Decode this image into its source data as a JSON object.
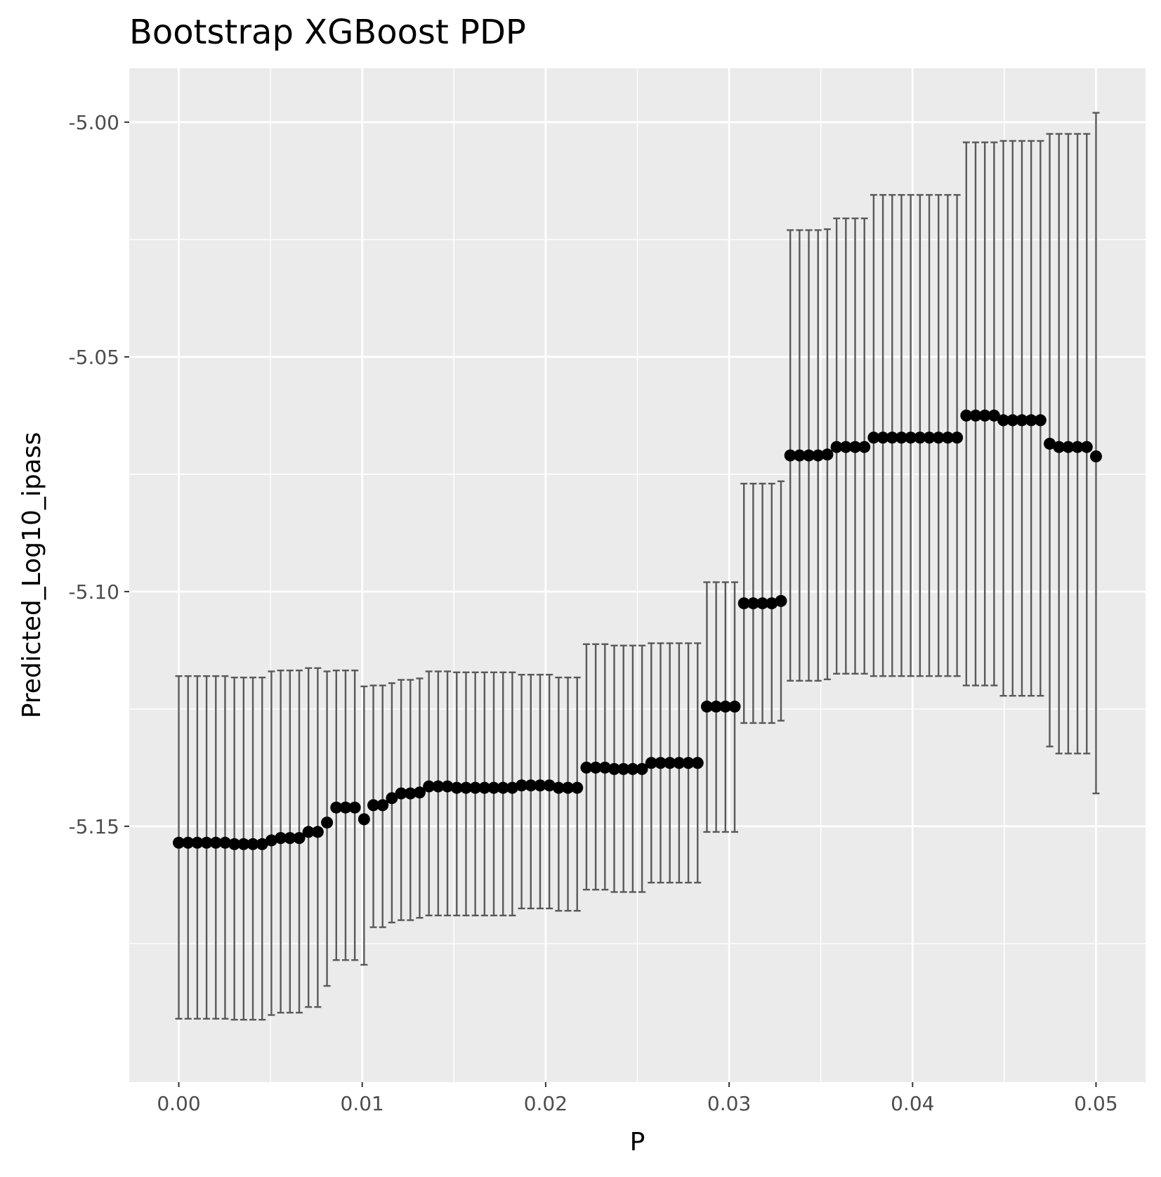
{
  "chart_data": {
    "type": "scatter",
    "title": "Bootstrap XGBoost PDP",
    "xlabel": "P",
    "ylabel": "Predicted_Log10_ipass",
    "xlim": [
      -0.0027,
      0.0527
    ],
    "ylim": [
      -5.2045,
      -4.9885
    ],
    "x_ticks": [
      0.0,
      0.01,
      0.02,
      0.03,
      0.04,
      0.05
    ],
    "x_tick_labels": [
      "0.00",
      "0.01",
      "0.02",
      "0.03",
      "0.04",
      "0.05"
    ],
    "y_ticks": [
      -5.0,
      -5.05,
      -5.1,
      -5.15
    ],
    "y_tick_labels": [
      "-5.00",
      "-5.05",
      "-5.10",
      "-5.15"
    ],
    "y_minor_ticks": [
      -4.975,
      -5.025,
      -5.075,
      -5.125,
      -5.175
    ],
    "x_minor_ticks": [
      0.005,
      0.015,
      0.025,
      0.035,
      0.045
    ],
    "grid": true,
    "legend": "none",
    "colors": {
      "panel": "#ebebeb",
      "grid": "#ffffff",
      "point": "#000000",
      "errorbar": "#595959"
    },
    "series": [
      {
        "x": [
          0.0,
          0.000505,
          0.00101,
          0.001515,
          0.00202,
          0.002525,
          0.00303,
          0.003535,
          0.00404,
          0.004545,
          0.00505,
          0.005556,
          0.006061,
          0.006566,
          0.007071,
          0.007576,
          0.008081,
          0.008586,
          0.009091,
          0.009596,
          0.010101,
          0.010606,
          0.011111,
          0.011616,
          0.012121,
          0.012626,
          0.013131,
          0.013636,
          0.014141,
          0.014646,
          0.015152,
          0.015657,
          0.016162,
          0.016667,
          0.017172,
          0.017677,
          0.018182,
          0.018687,
          0.019192,
          0.019697,
          0.020202,
          0.020707,
          0.021212,
          0.021717,
          0.022222,
          0.022727,
          0.023232,
          0.023737,
          0.024242,
          0.024747,
          0.025253,
          0.025758,
          0.026263,
          0.026768,
          0.027273,
          0.027778,
          0.028283,
          0.028788,
          0.029293,
          0.029798,
          0.030303,
          0.030808,
          0.031313,
          0.031818,
          0.032323,
          0.032828,
          0.033333,
          0.033838,
          0.034343,
          0.034848,
          0.035354,
          0.035859,
          0.036364,
          0.036869,
          0.037374,
          0.037879,
          0.038384,
          0.038889,
          0.039394,
          0.039899,
          0.040404,
          0.040909,
          0.041414,
          0.041919,
          0.042424,
          0.042929,
          0.043434,
          0.043939,
          0.044444,
          0.044949,
          0.045455,
          0.04596,
          0.046465,
          0.04697,
          0.047475,
          0.04798,
          0.048485,
          0.04899,
          0.049495,
          0.05
        ],
        "y": [
          -5.1535,
          -5.1535,
          -5.1535,
          -5.1535,
          -5.1535,
          -5.1535,
          -5.1538,
          -5.1538,
          -5.1538,
          -5.1538,
          -5.153,
          -5.1525,
          -5.1525,
          -5.1525,
          -5.1512,
          -5.1512,
          -5.1492,
          -5.146,
          -5.146,
          -5.146,
          -5.1485,
          -5.1455,
          -5.1455,
          -5.144,
          -5.143,
          -5.143,
          -5.1428,
          -5.1415,
          -5.1415,
          -5.1415,
          -5.1418,
          -5.1418,
          -5.1418,
          -5.1418,
          -5.1418,
          -5.1418,
          -5.1418,
          -5.1413,
          -5.1413,
          -5.1413,
          -5.1413,
          -5.1418,
          -5.1418,
          -5.1418,
          -5.1375,
          -5.1375,
          -5.1375,
          -5.1378,
          -5.1378,
          -5.1378,
          -5.1378,
          -5.1365,
          -5.1365,
          -5.1365,
          -5.1365,
          -5.1365,
          -5.1365,
          -5.1245,
          -5.1245,
          -5.1245,
          -5.1245,
          -5.1025,
          -5.1025,
          -5.1025,
          -5.1025,
          -5.102,
          -5.071,
          -5.071,
          -5.071,
          -5.071,
          -5.0708,
          -5.0692,
          -5.0692,
          -5.0692,
          -5.0692,
          -5.0672,
          -5.0672,
          -5.0672,
          -5.0672,
          -5.0672,
          -5.0672,
          -5.0672,
          -5.0672,
          -5.0672,
          -5.0672,
          -5.0625,
          -5.0625,
          -5.0625,
          -5.0625,
          -5.0635,
          -5.0635,
          -5.0635,
          -5.0635,
          -5.0635,
          -5.0685,
          -5.0692,
          -5.0692,
          -5.0692,
          -5.0692,
          -5.0712
        ],
        "ymin": [
          -5.191,
          -5.191,
          -5.191,
          -5.191,
          -5.191,
          -5.191,
          -5.1912,
          -5.1912,
          -5.1912,
          -5.1912,
          -5.1902,
          -5.1897,
          -5.1897,
          -5.1897,
          -5.1885,
          -5.1885,
          -5.184,
          -5.1785,
          -5.1785,
          -5.1785,
          -5.1795,
          -5.1715,
          -5.1715,
          -5.1705,
          -5.17,
          -5.17,
          -5.1695,
          -5.169,
          -5.169,
          -5.169,
          -5.169,
          -5.169,
          -5.169,
          -5.169,
          -5.169,
          -5.169,
          -5.169,
          -5.1675,
          -5.1675,
          -5.1675,
          -5.1675,
          -5.168,
          -5.168,
          -5.168,
          -5.1635,
          -5.1635,
          -5.1635,
          -5.164,
          -5.164,
          -5.164,
          -5.164,
          -5.162,
          -5.162,
          -5.162,
          -5.162,
          -5.162,
          -5.162,
          -5.1512,
          -5.1512,
          -5.1512,
          -5.1512,
          -5.128,
          -5.128,
          -5.128,
          -5.128,
          -5.1275,
          -5.119,
          -5.119,
          -5.119,
          -5.119,
          -5.1187,
          -5.1175,
          -5.1175,
          -5.1175,
          -5.1175,
          -5.118,
          -5.118,
          -5.118,
          -5.118,
          -5.118,
          -5.118,
          -5.118,
          -5.118,
          -5.118,
          -5.118,
          -5.12,
          -5.12,
          -5.12,
          -5.12,
          -5.1222,
          -5.1222,
          -5.1222,
          -5.1222,
          -5.1222,
          -5.133,
          -5.1345,
          -5.1345,
          -5.1345,
          -5.1345,
          -5.143
        ],
        "ymax": [
          -5.118,
          -5.118,
          -5.118,
          -5.118,
          -5.118,
          -5.118,
          -5.1183,
          -5.1183,
          -5.1183,
          -5.1183,
          -5.117,
          -5.1168,
          -5.1168,
          -5.1168,
          -5.1163,
          -5.1163,
          -5.117,
          -5.1168,
          -5.1168,
          -5.1168,
          -5.1202,
          -5.12,
          -5.12,
          -5.1195,
          -5.1188,
          -5.1188,
          -5.1185,
          -5.117,
          -5.117,
          -5.117,
          -5.1172,
          -5.1172,
          -5.1172,
          -5.1172,
          -5.1172,
          -5.1172,
          -5.1172,
          -5.1177,
          -5.1177,
          -5.1177,
          -5.1177,
          -5.1183,
          -5.1183,
          -5.1183,
          -5.1112,
          -5.1112,
          -5.1112,
          -5.1115,
          -5.1115,
          -5.1115,
          -5.1115,
          -5.111,
          -5.111,
          -5.111,
          -5.111,
          -5.111,
          -5.111,
          -5.098,
          -5.098,
          -5.098,
          -5.098,
          -5.077,
          -5.077,
          -5.077,
          -5.077,
          -5.0765,
          -5.023,
          -5.023,
          -5.023,
          -5.023,
          -5.0228,
          -5.0205,
          -5.0205,
          -5.0205,
          -5.0205,
          -5.0155,
          -5.0155,
          -5.0155,
          -5.0155,
          -5.0155,
          -5.0155,
          -5.0155,
          -5.0155,
          -5.0155,
          -5.0155,
          -5.0043,
          -5.0043,
          -5.0043,
          -5.0043,
          -5.004,
          -5.004,
          -5.004,
          -5.004,
          -5.004,
          -5.0025,
          -5.0025,
          -5.0025,
          -5.0025,
          -5.0025,
          -4.998
        ]
      }
    ]
  }
}
